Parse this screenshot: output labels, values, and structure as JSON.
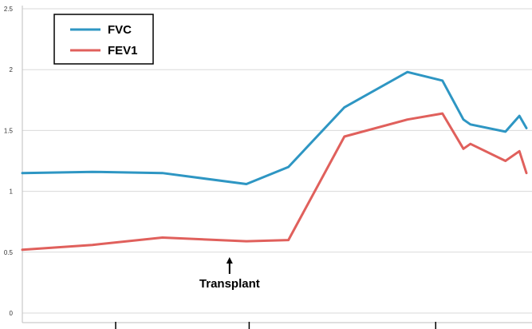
{
  "chart_data": {
    "type": "line",
    "title": "",
    "xlabel": "",
    "ylabel": "",
    "ylim": [
      0,
      2.5
    ],
    "y_ticks": [
      "0",
      "0.5",
      "1",
      "1.5",
      "2",
      "2.5"
    ],
    "grid": true,
    "legend_position": "top-left",
    "annotation": {
      "text": "Transplant",
      "x": 14.8
    },
    "x": [
      0,
      5,
      10,
      16,
      19,
      23,
      27.5,
      30,
      31.5,
      32,
      34.5,
      35.5,
      36
    ],
    "series": [
      {
        "name": "FVC",
        "color": "#2e96c3",
        "values": [
          1.15,
          1.16,
          1.15,
          1.06,
          1.2,
          1.69,
          1.98,
          1.91,
          1.59,
          1.55,
          1.49,
          1.62,
          1.52
        ]
      },
      {
        "name": "FEV1",
        "color": "#e0605c",
        "values": [
          0.52,
          0.56,
          0.62,
          0.59,
          0.6,
          1.45,
          1.59,
          1.64,
          1.35,
          1.39,
          1.25,
          1.33,
          1.15
        ]
      }
    ]
  }
}
